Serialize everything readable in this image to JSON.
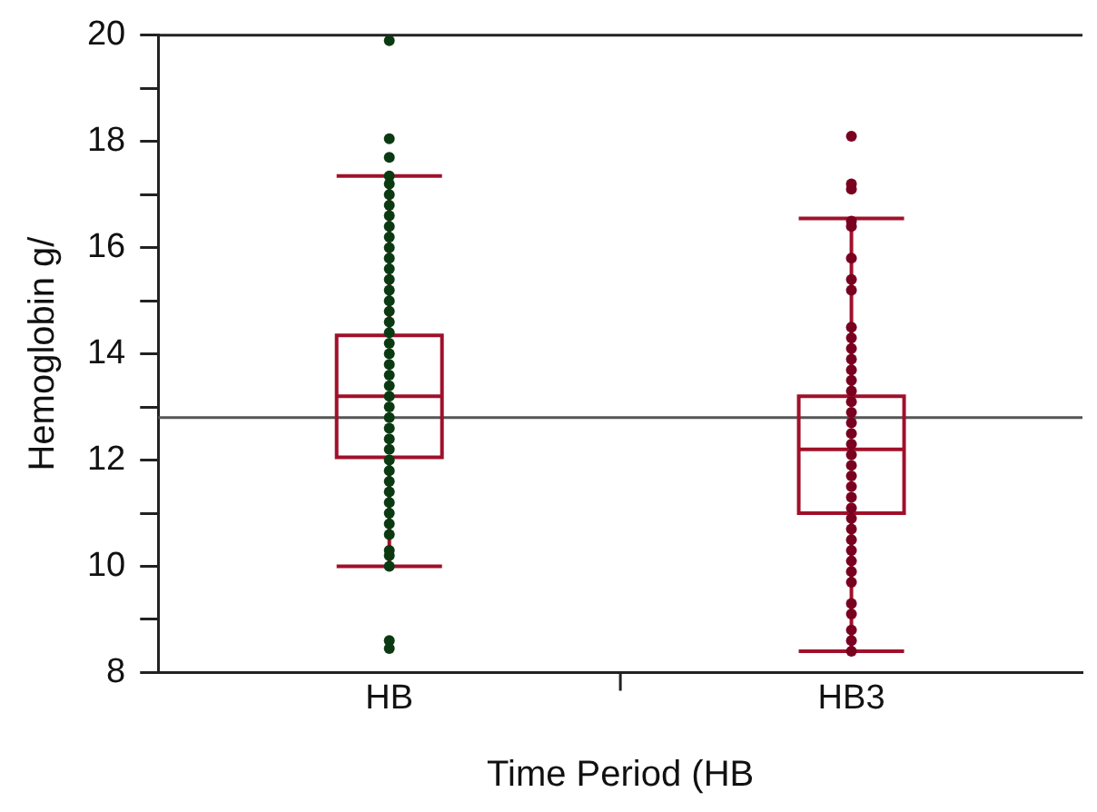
{
  "chart_data": {
    "type": "box",
    "xlabel": "Time Period (HB",
    "ylabel": "Hemoglobin g/",
    "categories": [
      "HB",
      "HB3"
    ],
    "ylim": [
      8,
      20
    ],
    "yticks": [
      8,
      {
        "value": 9,
        "label": null
      },
      10,
      {
        "value": 11,
        "label": null
      },
      12,
      {
        "value": 13,
        "label": null
      },
      14,
      {
        "value": 15,
        "label": null
      },
      16,
      {
        "value": 17,
        "label": null
      },
      18,
      {
        "value": 19,
        "label": null
      },
      20
    ],
    "grid": false,
    "legend": false,
    "marker": "circle",
    "ref_lines": [
      {
        "axis": "y",
        "value": 12.8,
        "color": "#555555"
      }
    ],
    "series": [
      {
        "color": "#a0102a",
        "boxes": [
          {
            "low": 10.0,
            "q1": 12.05,
            "median": 13.2,
            "q3": 14.35,
            "high": 17.35
          },
          {
            "low": 8.4,
            "q1": 11.0,
            "median": 12.2,
            "q3": 13.2,
            "high": 16.55
          }
        ]
      },
      {
        "type": "scatter",
        "color": "#0b3a12",
        "x": [
          "HB",
          "HB",
          "HB",
          "HB",
          "HB",
          "HB",
          "HB",
          "HB",
          "HB",
          "HB",
          "HB",
          "HB",
          "HB",
          "HB",
          "HB",
          "HB",
          "HB",
          "HB",
          "HB",
          "HB",
          "HB",
          "HB",
          "HB",
          "HB",
          "HB",
          "HB",
          "HB",
          "HB",
          "HB",
          "HB",
          "HB",
          "HB",
          "HB",
          "HB",
          "HB",
          "HB",
          "HB",
          "HB",
          "HB",
          "HB",
          "HB",
          "HB",
          "HB"
        ],
        "values": [
          19.9,
          18.05,
          17.7,
          17.35,
          17.2,
          17.0,
          16.8,
          16.6,
          16.4,
          16.2,
          16.0,
          15.8,
          15.6,
          15.4,
          15.2,
          15.0,
          14.8,
          14.6,
          14.4,
          14.2,
          14.0,
          13.8,
          13.6,
          13.4,
          13.2,
          13.0,
          12.8,
          12.6,
          12.4,
          12.2,
          12.0,
          11.8,
          11.6,
          11.4,
          11.2,
          11.0,
          10.8,
          10.6,
          10.3,
          10.2,
          10.0,
          8.6,
          8.45
        ]
      },
      {
        "type": "scatter",
        "color": "#7a0020",
        "x": [
          "HB3",
          "HB3",
          "HB3",
          "HB3",
          "HB3",
          "HB3",
          "HB3",
          "HB3",
          "HB3",
          "HB3",
          "HB3",
          "HB3",
          "HB3",
          "HB3",
          "HB3",
          "HB3",
          "HB3",
          "HB3",
          "HB3",
          "HB3",
          "HB3",
          "HB3",
          "HB3",
          "HB3",
          "HB3",
          "HB3",
          "HB3",
          "HB3",
          "HB3",
          "HB3",
          "HB3",
          "HB3",
          "HB3",
          "HB3",
          "HB3",
          "HB3",
          "HB3",
          "HB3"
        ],
        "values": [
          18.1,
          17.2,
          17.1,
          16.5,
          16.4,
          15.8,
          15.4,
          15.2,
          14.5,
          14.3,
          14.1,
          13.9,
          13.7,
          13.5,
          13.3,
          13.1,
          12.9,
          12.7,
          12.5,
          12.3,
          12.1,
          11.9,
          11.7,
          11.5,
          11.3,
          11.1,
          10.9,
          10.7,
          10.5,
          10.3,
          10.1,
          9.9,
          9.7,
          9.3,
          9.1,
          8.8,
          8.6,
          8.4
        ]
      }
    ]
  }
}
